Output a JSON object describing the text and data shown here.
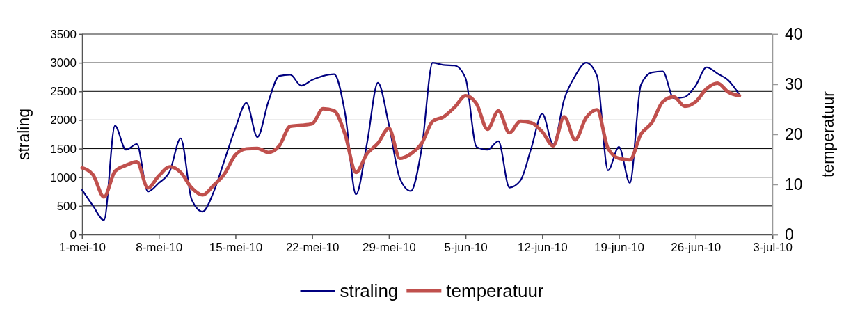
{
  "chart_data": {
    "type": "line",
    "ylabel": "straling",
    "y2label": "temperatuur",
    "x": [
      "--05-01",
      "--05-02",
      "--05-03",
      "--05-04",
      "--05-05",
      "--05-06",
      "--05-07",
      "--05-08",
      "--05-09",
      "--05-10",
      "--05-11",
      "--05-12",
      "--05-13",
      "--05-14",
      "--05-15",
      "--05-16",
      "--05-17",
      "--05-18",
      "--05-19",
      "--05-20",
      "--05-21",
      "--05-22",
      "--05-23",
      "--05-24",
      "--05-25",
      "--05-26",
      "--05-27",
      "--05-28",
      "--05-29",
      "--05-30",
      "--05-31",
      "--06-01",
      "--06-02",
      "--06-03",
      "--06-04",
      "--06-05",
      "--06-06",
      "--06-07",
      "--06-08",
      "--06-09",
      "--06-10",
      "--06-11",
      "--06-12",
      "--06-13",
      "--06-14",
      "--06-15",
      "--06-16",
      "--06-17",
      "--06-18",
      "--06-19",
      "--06-20",
      "--06-21",
      "--06-22",
      "--06-23",
      "--06-24",
      "--06-25",
      "--06-26",
      "--06-27",
      "--06-28",
      "--06-29",
      "--06-30"
    ],
    "series": [
      {
        "name": "straling",
        "color": "#000080",
        "values": [
          780,
          500,
          250,
          1900,
          1480,
          1580,
          750,
          900,
          1100,
          1680,
          610,
          400,
          740,
          1300,
          1860,
          2300,
          1700,
          2320,
          2770,
          2790,
          2600,
          2700,
          2770,
          2800,
          2120,
          700,
          1590,
          2650,
          1920,
          980,
          760,
          1510,
          3000,
          2960,
          2950,
          2730,
          1530,
          1480,
          1630,
          820,
          940,
          1510,
          2110,
          1570,
          2360,
          2770,
          3000,
          2770,
          1120,
          1530,
          900,
          2610,
          2830,
          2850,
          2380,
          2400,
          2600,
          2920,
          2810,
          2690,
          2440
        ]
      },
      {
        "name": "temperatuur",
        "color": "#c0504d",
        "axis": "y2",
        "values": [
          13.3,
          11.9,
          7.5,
          12.6,
          13.8,
          14.5,
          9.3,
          11.7,
          13.5,
          12.4,
          9.3,
          7.9,
          9.8,
          12.1,
          15.9,
          17.1,
          17.2,
          16.4,
          17.7,
          21.6,
          21.8,
          22.1,
          25.1,
          24.7,
          20.0,
          12.4,
          16.1,
          18.2,
          21.2,
          15.2,
          16.1,
          18.2,
          22.6,
          23.5,
          25.4,
          27.7,
          26.1,
          21.0,
          24.7,
          20.3,
          22.6,
          22.3,
          20.5,
          17.7,
          23.5,
          18.9,
          23.3,
          24.9,
          17.2,
          15.2,
          14.9,
          20.0,
          22.3,
          26.5,
          27.5,
          25.6,
          26.5,
          29.1,
          30.2,
          28.4,
          27.7
        ]
      }
    ],
    "xlim": [
      "--05-01",
      "--07-03"
    ],
    "xticks": [
      {
        "value": "--05-01",
        "label": "1-mei-10"
      },
      {
        "value": "--05-08",
        "label": "8-mei-10"
      },
      {
        "value": "--05-15",
        "label": "15-mei-10"
      },
      {
        "value": "--05-22",
        "label": "22-mei-10"
      },
      {
        "value": "--05-29",
        "label": "29-mei-10"
      },
      {
        "value": "--06-05",
        "label": "5-jun-10"
      },
      {
        "value": "--06-12",
        "label": "12-jun-10"
      },
      {
        "value": "--06-19",
        "label": "19-jun-10"
      },
      {
        "value": "--06-26",
        "label": "26-jun-10"
      },
      {
        "value": "--07-03",
        "label": "3-jul-10"
      }
    ],
    "ylim": [
      0,
      3500
    ],
    "yticks": [
      0,
      500,
      1000,
      1500,
      2000,
      2500,
      3000,
      3500
    ],
    "y2lim": [
      0,
      40
    ],
    "y2ticks": [
      0,
      10,
      20,
      30,
      40
    ],
    "grid": "y",
    "legend": "bottom",
    "marker": "none",
    "line_style": "solid"
  }
}
